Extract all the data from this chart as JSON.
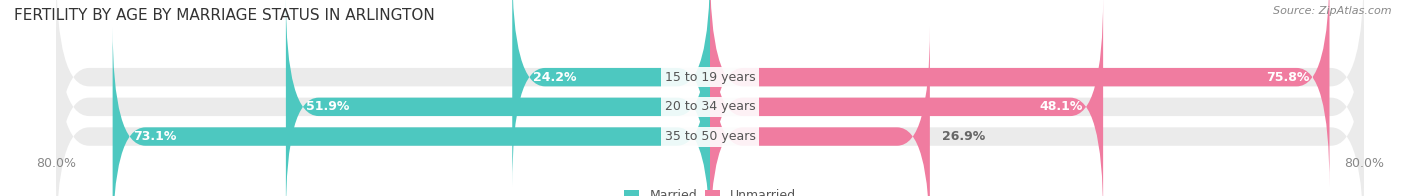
{
  "title": "FERTILITY BY AGE BY MARRIAGE STATUS IN ARLINGTON",
  "source": "Source: ZipAtlas.com",
  "categories": [
    "15 to 19 years",
    "20 to 34 years",
    "35 to 50 years"
  ],
  "married_values": [
    24.2,
    51.9,
    73.1
  ],
  "unmarried_values": [
    75.8,
    48.1,
    26.9
  ],
  "x_min": -80.0,
  "x_max": 80.0,
  "married_color": "#4DC8C0",
  "unmarried_color": "#F07CA0",
  "bar_bg_color": "#EBEBEB",
  "bar_height": 0.62,
  "bar_gap": 0.18,
  "title_fontsize": 11,
  "label_fontsize": 9,
  "value_fontsize": 9,
  "tick_fontsize": 9,
  "legend_fontsize": 9,
  "dark_label_color": "#666666",
  "white_label_color": "#FFFFFF",
  "title_color": "#333333",
  "tick_color": "#888888",
  "category_label_color": "#555555"
}
